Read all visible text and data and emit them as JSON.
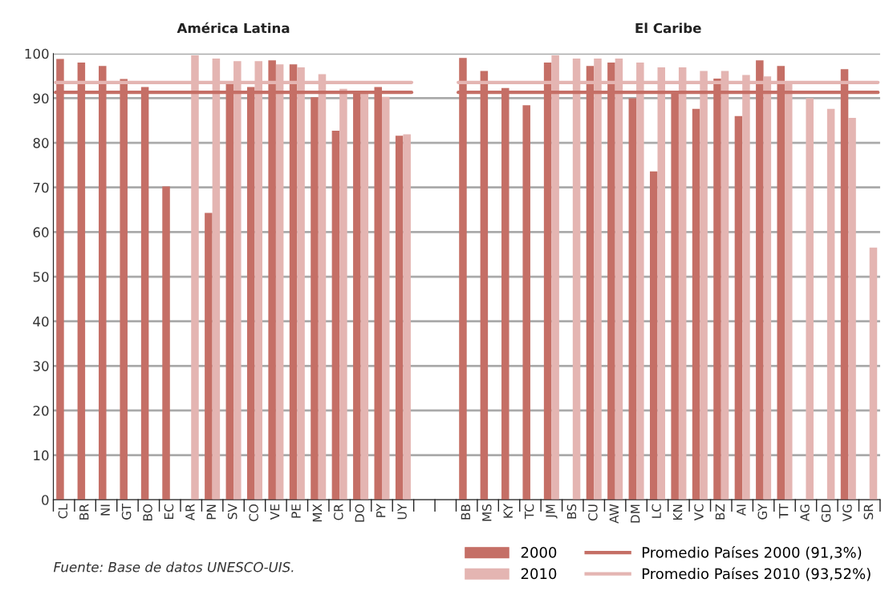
{
  "chart_data": {
    "type": "bar",
    "categories": [
      "CL",
      "BR",
      "NI",
      "GT",
      "BO",
      "EC",
      "AR",
      "PN",
      "SV",
      "CO",
      "VE",
      "PE",
      "MX",
      "CR",
      "DO",
      "PY",
      "UY",
      null,
      null,
      "BB",
      "MS",
      "KY",
      "TC",
      "JM",
      "BS",
      "CU",
      "AW",
      "DM",
      "LC",
      "KN",
      "VC",
      "BZ",
      "AI",
      "GY",
      "TT",
      "AG",
      "GD",
      "VG",
      "SR"
    ],
    "series": [
      {
        "name": "2000",
        "color": "#c56f66",
        "values": [
          98.8,
          98,
          97.2,
          94.3,
          92.5,
          70.2,
          null,
          64.3,
          93.3,
          92.5,
          98.5,
          97.6,
          90.2,
          82.7,
          91.5,
          92.5,
          81.6,
          null,
          null,
          99.0,
          96.1,
          92.3,
          88.4,
          98.0,
          null,
          97.2,
          98.0,
          90.0,
          73.6,
          91.3,
          87.6,
          94.4,
          86.0,
          98.5,
          97.2,
          null,
          null,
          96.5,
          null
        ]
      },
      {
        "name": "2010",
        "color": "#e4b5b2",
        "values": [
          null,
          null,
          null,
          null,
          null,
          null,
          99.6,
          98.9,
          98.3,
          98.3,
          97.6,
          96.9,
          95.4,
          92.1,
          91.3,
          90.3,
          81.9,
          null,
          null,
          null,
          null,
          null,
          null,
          99.6,
          98.9,
          98.9,
          98.9,
          98.0,
          96.9,
          96.9,
          96.1,
          96.1,
          95.2,
          94.9,
          93.7,
          90.0,
          87.6,
          85.6,
          56.5
        ]
      }
    ],
    "ylim": [
      0,
      100
    ],
    "yticks": [
      0,
      10,
      20,
      30,
      40,
      50,
      60,
      70,
      80,
      90,
      100
    ],
    "grid": "y",
    "legend": "bottom right",
    "ref_lines": [
      {
        "axis": "y",
        "value": 91.3,
        "label": "Promedio Países 2000 (91,3%)",
        "color": "#c56f66"
      },
      {
        "axis": "y",
        "value": 93.52,
        "label": "Promedio Países 2010 (93,52%)",
        "color": "#e4b5b2"
      }
    ],
    "annotations": [
      "América Latina",
      "El Caribe",
      "Fuente: Base de datos UNESCO-UIS."
    ]
  }
}
